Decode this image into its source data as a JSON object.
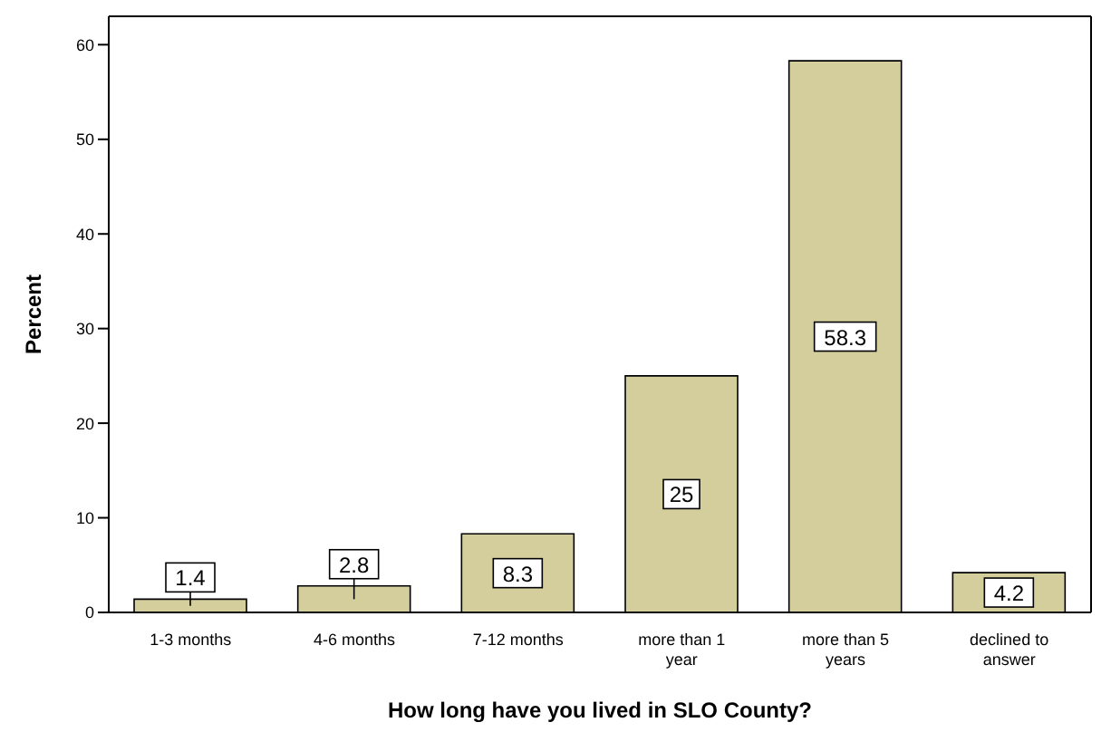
{
  "chart_data": {
    "type": "bar",
    "xlabel": "How long have you lived in SLO County?",
    "ylabel": "Percent",
    "categories": [
      "1-3 months",
      "4-6 months",
      "7-12 months",
      "more than 1 year",
      "more than 5 years",
      "declined to answer"
    ],
    "values": [
      1.4,
      2.8,
      8.3,
      25,
      58.3,
      4.2
    ],
    "color": "#d3ce9c",
    "ylim": [
      0,
      63
    ],
    "yticks": [
      0,
      10,
      20,
      30,
      40,
      50,
      60
    ],
    "data_labels": true
  }
}
